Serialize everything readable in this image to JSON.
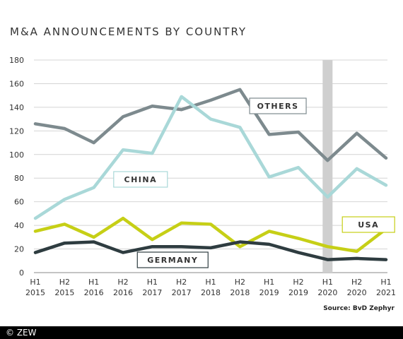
{
  "chart_data": {
    "type": "line",
    "title": "M&A ANNOUNCEMENTS BY COUNTRY",
    "source": "Source: BvD Zephyr",
    "copyright": "© ZEW",
    "ylim": [
      0,
      180
    ],
    "yticks": [
      0,
      20,
      40,
      60,
      80,
      100,
      120,
      140,
      160,
      180
    ],
    "categories": [
      [
        "H1",
        "2015"
      ],
      [
        "H2",
        "2015"
      ],
      [
        "H1",
        "2016"
      ],
      [
        "H2",
        "2016"
      ],
      [
        "H1",
        "2017"
      ],
      [
        "H2",
        "2017"
      ],
      [
        "H1",
        "2018"
      ],
      [
        "H2",
        "2018"
      ],
      [
        "H1",
        "2019"
      ],
      [
        "H2",
        "2019"
      ],
      [
        "H1",
        "2020"
      ],
      [
        "H2",
        "2020"
      ],
      [
        "H1",
        "2021"
      ]
    ],
    "highlight_category_index": 10,
    "series": [
      {
        "name": "OTHERS",
        "color": "#7d8a8e",
        "values": [
          126,
          122,
          110,
          132,
          141,
          138,
          146,
          155,
          117,
          119,
          95,
          118,
          97
        ]
      },
      {
        "name": "CHINA",
        "color": "#a9d8d8",
        "values": [
          46,
          62,
          72,
          104,
          101,
          149,
          130,
          123,
          81,
          89,
          64,
          88,
          74
        ]
      },
      {
        "name": "USA",
        "color": "#c6cf16",
        "values": [
          35,
          41,
          30,
          46,
          28,
          42,
          41,
          22,
          35,
          29,
          22,
          18,
          37
        ]
      },
      {
        "name": "GERMANY",
        "color": "#2e3c40",
        "values": [
          17,
          25,
          26,
          17,
          22,
          22,
          21,
          26,
          24,
          17,
          11,
          12,
          11
        ]
      }
    ]
  }
}
